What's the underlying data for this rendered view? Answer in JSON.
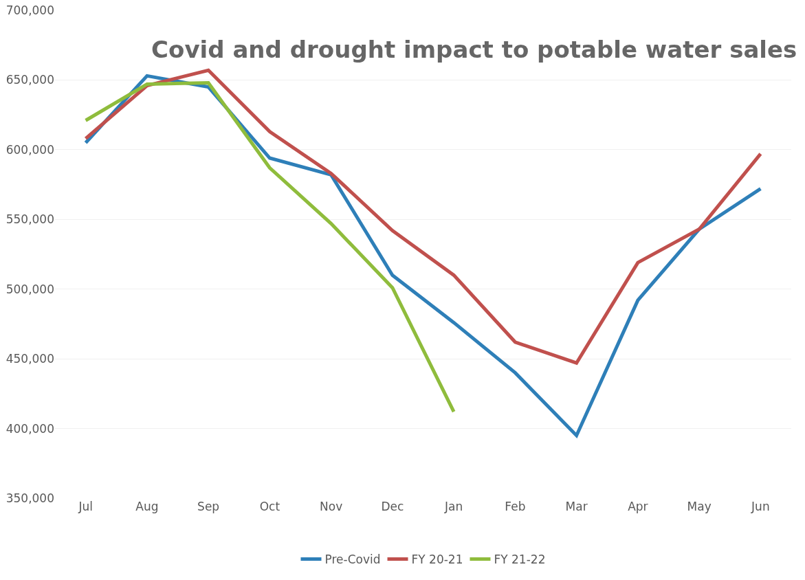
{
  "chart_data": {
    "type": "line",
    "title": "Covid and drought impact to potable water sales",
    "categories": [
      "Jul",
      "Aug",
      "Sep",
      "Oct",
      "Nov",
      "Dec",
      "Jan",
      "Feb",
      "Mar",
      "Apr",
      "May",
      "Jun"
    ],
    "series": [
      {
        "name": "Pre-Covid",
        "color": "#2e7fb8",
        "values": [
          605000,
          653000,
          645000,
          594000,
          582000,
          510000,
          476000,
          440000,
          395000,
          492000,
          543000,
          572000
        ]
      },
      {
        "name": "FY 20-21",
        "color": "#c0504d",
        "values": [
          608000,
          646000,
          657000,
          613000,
          583000,
          542000,
          510000,
          462000,
          447000,
          519000,
          543000,
          597000
        ]
      },
      {
        "name": "FY 21-22",
        "color": "#8fbc3c",
        "values": [
          621000,
          647000,
          648000,
          587000,
          547000,
          501000,
          412000,
          null,
          null,
          null,
          null,
          null
        ]
      }
    ],
    "ylim": [
      350000,
      700000
    ],
    "yticks": [
      {
        "value": 350000,
        "label": "350,000"
      },
      {
        "value": 400000,
        "label": "400,000"
      },
      {
        "value": 450000,
        "label": "450,000"
      },
      {
        "value": 500000,
        "label": "500,000"
      },
      {
        "value": 550000,
        "label": "550,000"
      },
      {
        "value": 600000,
        "label": "600,000"
      },
      {
        "value": 650000,
        "label": "650,000"
      },
      {
        "value": 700000,
        "label": "700,000"
      }
    ],
    "grid": "y",
    "legend": "bottom",
    "marker": "none",
    "line_style": "solid"
  }
}
